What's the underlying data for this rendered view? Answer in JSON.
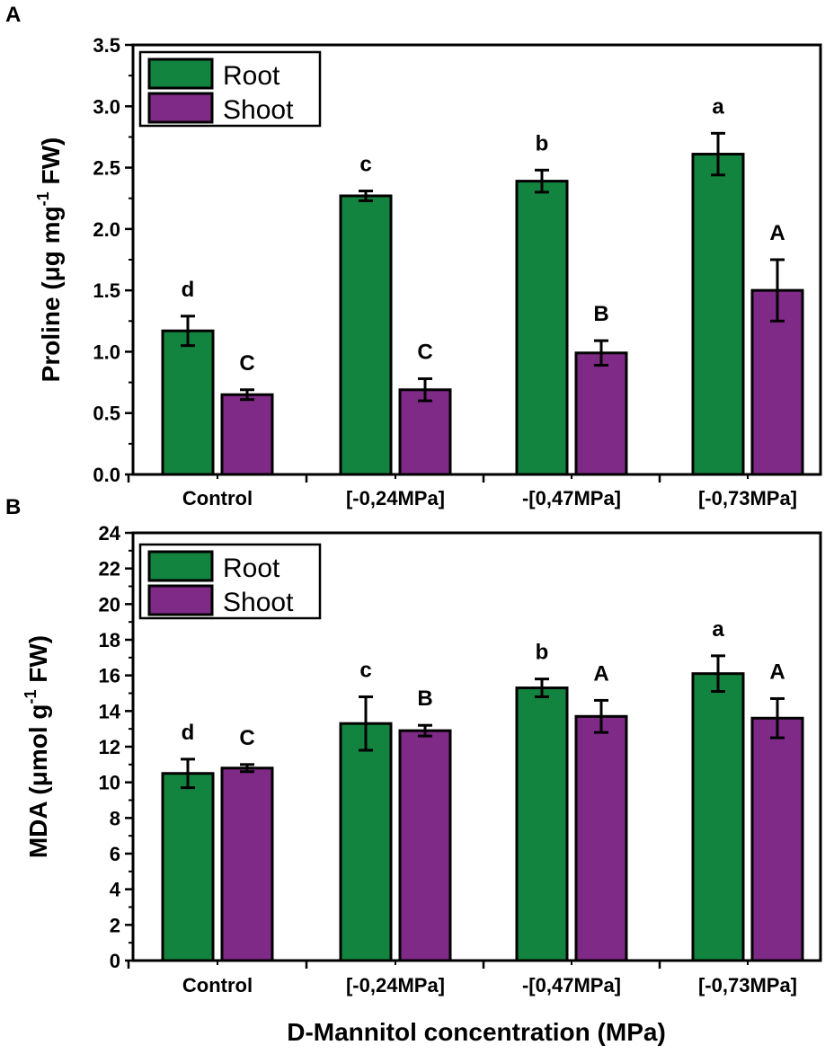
{
  "chart_data": [
    {
      "panel": "A",
      "type": "bar",
      "categories": [
        "Control",
        "[-0,24MPa]",
        "-[0,47MPa]",
        "[-0,73MPa]"
      ],
      "series": [
        {
          "name": "Root",
          "color": "#13843f",
          "values": [
            1.17,
            2.27,
            2.39,
            2.61
          ],
          "errors": [
            0.12,
            0.04,
            0.09,
            0.17
          ],
          "labels": [
            "d",
            "c",
            "b",
            "a"
          ]
        },
        {
          "name": "Shoot",
          "color": "#7f2a87",
          "values": [
            0.65,
            0.69,
            0.99,
            1.5
          ],
          "errors": [
            0.04,
            0.09,
            0.1,
            0.25
          ],
          "labels": [
            "C",
            "C",
            "B",
            "A"
          ]
        }
      ],
      "ylabel_main": "Proline (μg mg",
      "ylabel_sup": "-1",
      "ylabel_end": " FW)",
      "xlabel": "",
      "ylim": [
        0,
        3.5
      ],
      "yticks": [
        0.0,
        0.5,
        1.0,
        1.5,
        2.0,
        2.5,
        3.0,
        3.5
      ],
      "ytick_labels": [
        "0.0",
        "0.5",
        "1.0",
        "1.5",
        "2.0",
        "2.5",
        "3.0",
        "3.5"
      ],
      "legend_position": "top-left"
    },
    {
      "panel": "B",
      "type": "bar",
      "categories": [
        "Control",
        "[-0,24MPa]",
        "-[0,47MPa]",
        "[-0,73MPa]"
      ],
      "series": [
        {
          "name": "Root",
          "color": "#13843f",
          "values": [
            10.5,
            13.3,
            15.3,
            16.1
          ],
          "errors": [
            0.8,
            1.5,
            0.5,
            1.0
          ],
          "labels": [
            "d",
            "c",
            "b",
            "a"
          ]
        },
        {
          "name": "Shoot",
          "color": "#7f2a87",
          "values": [
            10.8,
            12.9,
            13.7,
            13.6
          ],
          "errors": [
            0.2,
            0.3,
            0.9,
            1.1
          ],
          "labels": [
            "C",
            "B",
            "A",
            "A"
          ]
        }
      ],
      "ylabel_main": "MDA (μmol g",
      "ylabel_sup": "-1",
      "ylabel_end": " FW)",
      "xlabel": "D-Mannitol concentration (MPa)",
      "ylim": [
        0,
        24
      ],
      "yticks": [
        0,
        2,
        4,
        6,
        8,
        10,
        12,
        14,
        16,
        18,
        20,
        22,
        24
      ],
      "ytick_labels": [
        "0",
        "2",
        "4",
        "6",
        "8",
        "10",
        "12",
        "14",
        "16",
        "18",
        "20",
        "22",
        "24"
      ],
      "legend_position": "top-left"
    }
  ]
}
